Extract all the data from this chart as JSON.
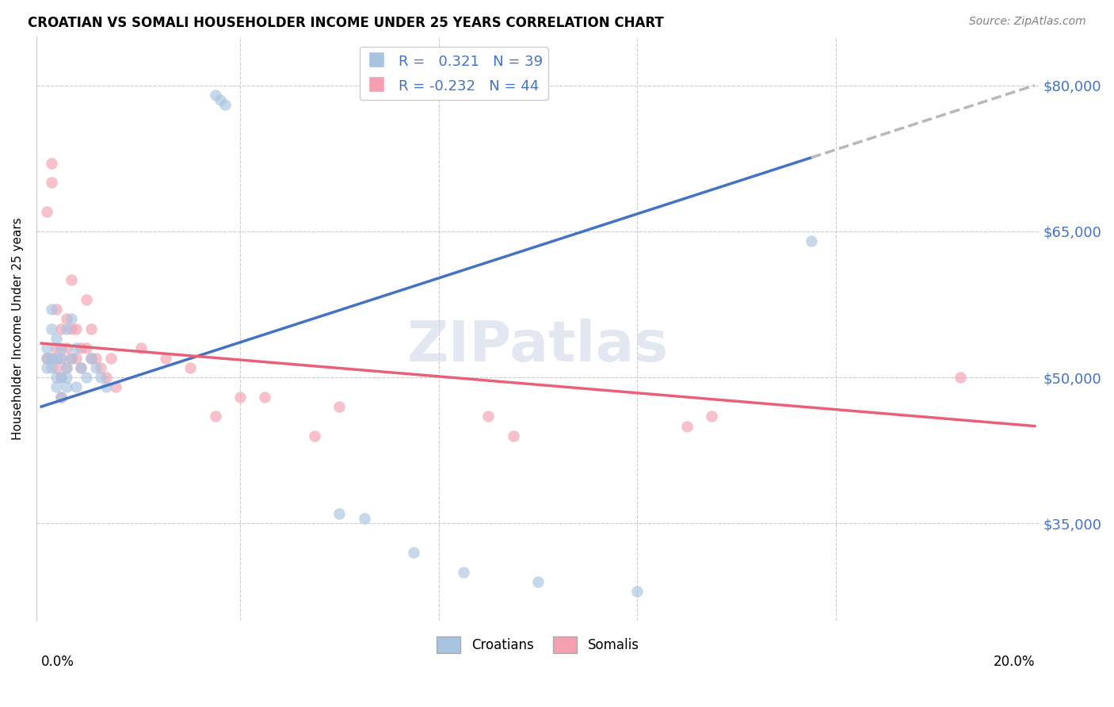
{
  "title": "CROATIAN VS SOMALI HOUSEHOLDER INCOME UNDER 25 YEARS CORRELATION CHART",
  "source": "Source: ZipAtlas.com",
  "ylabel": "Householder Income Under 25 years",
  "ytick_labels": [
    "$35,000",
    "$50,000",
    "$65,000",
    "$80,000"
  ],
  "ytick_values": [
    35000,
    50000,
    65000,
    80000
  ],
  "ylim": [
    25000,
    85000
  ],
  "xlim": [
    -0.001,
    0.201
  ],
  "croatian_color": "#a8c4e0",
  "somali_color": "#f4a0b0",
  "trendline_croatian": "#4472c4",
  "trendline_somali": "#e8607a",
  "trendline_extension_color": "#b8b8b8",
  "background_color": "#ffffff",
  "watermark": "ZIPatlas",
  "croatian_x": [
    0.001,
    0.001,
    0.001,
    0.002,
    0.002,
    0.002,
    0.002,
    0.003,
    0.003,
    0.003,
    0.003,
    0.004,
    0.004,
    0.004,
    0.004,
    0.005,
    0.005,
    0.005,
    0.005,
    0.006,
    0.006,
    0.007,
    0.007,
    0.008,
    0.009,
    0.01,
    0.011,
    0.012,
    0.013,
    0.035,
    0.036,
    0.037,
    0.06,
    0.065,
    0.075,
    0.085,
    0.1,
    0.12,
    0.155
  ],
  "croatian_y": [
    53000,
    52000,
    51000,
    57000,
    55000,
    52000,
    51000,
    54000,
    52000,
    50000,
    49000,
    53000,
    52000,
    50000,
    48000,
    55000,
    51000,
    50000,
    49000,
    56000,
    52000,
    53000,
    49000,
    51000,
    50000,
    52000,
    51000,
    50000,
    49000,
    79000,
    78500,
    78000,
    36000,
    35500,
    32000,
    30000,
    29000,
    28000,
    64000
  ],
  "somali_x": [
    0.001,
    0.001,
    0.002,
    0.002,
    0.002,
    0.003,
    0.003,
    0.003,
    0.004,
    0.004,
    0.004,
    0.004,
    0.005,
    0.005,
    0.005,
    0.006,
    0.006,
    0.006,
    0.007,
    0.007,
    0.008,
    0.008,
    0.009,
    0.009,
    0.01,
    0.01,
    0.011,
    0.012,
    0.013,
    0.014,
    0.015,
    0.02,
    0.025,
    0.03,
    0.035,
    0.04,
    0.045,
    0.055,
    0.06,
    0.09,
    0.095,
    0.13,
    0.135,
    0.185
  ],
  "somali_y": [
    67000,
    52000,
    72000,
    70000,
    52000,
    57000,
    53000,
    51000,
    55000,
    52000,
    50000,
    48000,
    56000,
    53000,
    51000,
    60000,
    55000,
    52000,
    55000,
    52000,
    53000,
    51000,
    58000,
    53000,
    55000,
    52000,
    52000,
    51000,
    50000,
    52000,
    49000,
    53000,
    52000,
    51000,
    46000,
    48000,
    48000,
    44000,
    47000,
    46000,
    44000,
    45000,
    46000,
    50000
  ],
  "marker_size": 100,
  "marker_alpha": 0.65,
  "trendline_croatian_x0": 0.0,
  "trendline_croatian_y0": 47000,
  "trendline_croatian_x1": 0.2,
  "trendline_croatian_y1": 80000,
  "trendline_solid_end": 0.155,
  "trendline_somali_x0": 0.0,
  "trendline_somali_y0": 53500,
  "trendline_somali_x1": 0.2,
  "trendline_somali_y1": 45000
}
